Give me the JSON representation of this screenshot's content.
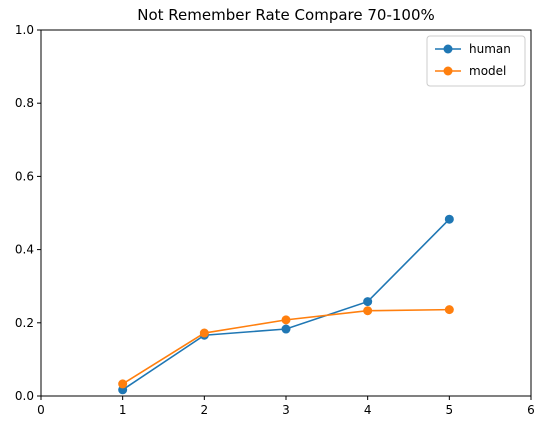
{
  "chart_data": {
    "type": "line",
    "title": "Not Remember Rate Compare 70-100%",
    "xlabel": "",
    "ylabel": "",
    "xlim": [
      0,
      6
    ],
    "ylim": [
      0,
      1.0
    ],
    "xticks": [
      0,
      1,
      2,
      3,
      4,
      5,
      6
    ],
    "yticks": [
      0.0,
      0.2,
      0.4,
      0.6,
      0.8,
      1.0
    ],
    "xtick_labels": [
      "0",
      "1",
      "2",
      "3",
      "4",
      "5",
      "6"
    ],
    "ytick_labels": [
      "0.0",
      "0.2",
      "0.4",
      "0.6",
      "0.8",
      "1.0"
    ],
    "grid": false,
    "legend_position": "top-right",
    "series": [
      {
        "name": "human",
        "color": "#1f77b4",
        "x": [
          1,
          2,
          3,
          4,
          5
        ],
        "y": [
          0.017,
          0.166,
          0.183,
          0.258,
          0.483
        ]
      },
      {
        "name": "model",
        "color": "#ff7f0e",
        "x": [
          1,
          2,
          3,
          4,
          5
        ],
        "y": [
          0.033,
          0.172,
          0.208,
          0.233,
          0.236
        ]
      }
    ]
  }
}
